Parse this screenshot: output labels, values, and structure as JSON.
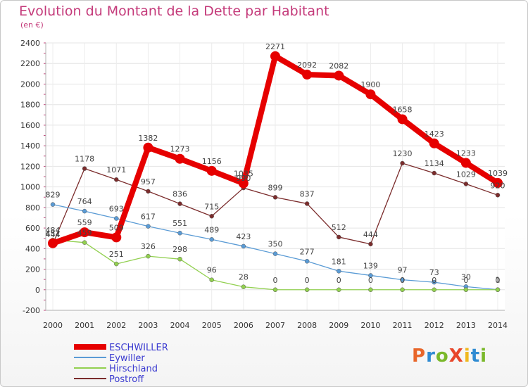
{
  "title": "Evolution du Montant de la Dette par Habitant",
  "subtitle": "(en €)",
  "logo": {
    "text": "ProXiti",
    "colors": [
      "#e8662a",
      "#2f8bd2",
      "#7ab82a",
      "#e8462a",
      "#f0b81f",
      "#2f8bd2",
      "#7ab82a"
    ]
  },
  "chart_data": {
    "type": "line",
    "title": "Evolution du Montant de la Dette par Habitant",
    "unit": "(en €)",
    "ylim": [
      -200,
      2400
    ],
    "yticks": [
      -200,
      0,
      200,
      400,
      600,
      800,
      1000,
      1200,
      1400,
      1600,
      1800,
      2000,
      2200,
      2400
    ],
    "grid": true,
    "legend_position": "bottom-left",
    "x": [
      "2000",
      "2001",
      "2002",
      "2003",
      "2004",
      "2005",
      "2006",
      "2007",
      "2008",
      "2009",
      "2010",
      "2011",
      "2012",
      "2013",
      "2014"
    ],
    "series": [
      {
        "name": "ESCHWILLER",
        "color": "#e60000",
        "values": [
          452,
          559,
          509,
          1382,
          1273,
          1156,
          1035,
          2271,
          2092,
          2082,
          1900,
          1658,
          1423,
          1233,
          1039
        ]
      },
      {
        "name": "Eywiller",
        "color": "#5a9bd5",
        "values": [
          829,
          764,
          693,
          617,
          551,
          489,
          423,
          350,
          277,
          181,
          139,
          97,
          73,
          30,
          1
        ]
      },
      {
        "name": "Hirschland",
        "color": "#92d050",
        "values": [
          484,
          459,
          251,
          326,
          298,
          96,
          28,
          0,
          0,
          0,
          0,
          0,
          0,
          0,
          0
        ]
      },
      {
        "name": "Postroff",
        "color": "#7b2c2c",
        "values": [
          444,
          1178,
          1071,
          957,
          836,
          715,
          990,
          899,
          837,
          512,
          444,
          1230,
          1134,
          1029,
          920
        ]
      }
    ]
  }
}
